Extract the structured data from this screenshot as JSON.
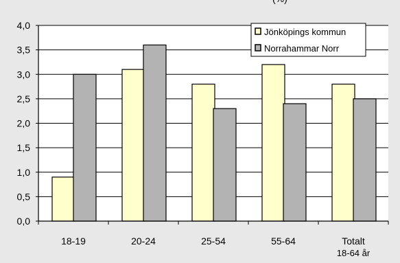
{
  "chart_data": {
    "type": "bar",
    "title": "(%)",
    "categories": [
      "18-19",
      "20-24",
      "25-54",
      "55-64",
      "Totalt\n18-64 år"
    ],
    "series": [
      {
        "name": "Jönköpings kommun",
        "color": "#ffffcc",
        "values": [
          0.9,
          3.1,
          2.8,
          3.2,
          2.8
        ]
      },
      {
        "name": "Norrahammar Norr",
        "color": "#b3b3b3",
        "values": [
          3.0,
          3.6,
          2.3,
          2.4,
          2.5
        ]
      }
    ],
    "ylim": [
      0,
      4.0
    ],
    "yticks": [
      "0,0",
      "0,5",
      "1,0",
      "1,5",
      "2,0",
      "2,5",
      "3,0",
      "3,5",
      "4,0"
    ],
    "grid": true,
    "legend": "top-right"
  }
}
